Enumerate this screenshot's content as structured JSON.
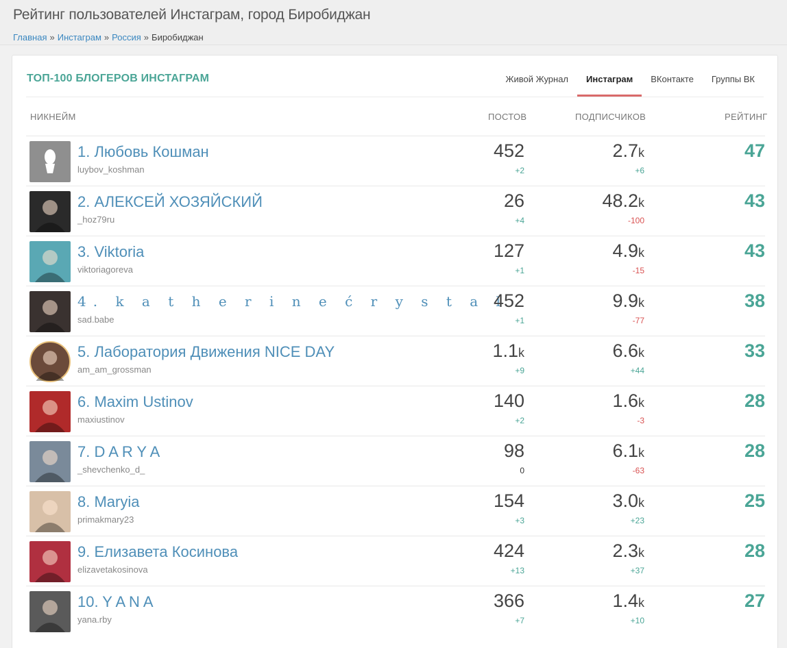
{
  "page": {
    "title": "Рейтинг пользователей Инстаграм, город Биробиджан",
    "breadcrumb": {
      "home": "Главная",
      "instagram": "Инстаграм",
      "country": "Россия",
      "separator": "»",
      "current": "Биробиджан"
    }
  },
  "card": {
    "title": "ТОП-100 БЛОГЕРОВ ИНСТАГРАМ",
    "tabs": [
      {
        "label": "Живой Журнал",
        "active": false
      },
      {
        "label": "Инстаграм",
        "active": true
      },
      {
        "label": "ВКонтакте",
        "active": false
      },
      {
        "label": "Группы ВК",
        "active": false
      }
    ],
    "columns": {
      "nickname": "НИКНЕЙМ",
      "posts": "ПОСТОВ",
      "subscribers": "ПОДПИСЧИКОВ",
      "rating": "РЕЙТИНГ"
    }
  },
  "unit_k": "k",
  "rows": [
    {
      "name": "1. Любовь Кошман",
      "handle": "luybov_koshman",
      "posts": "452",
      "posts_k": false,
      "posts_delta": "+2",
      "subs": "2.7",
      "subs_delta": "+6",
      "rating": "47"
    },
    {
      "name": "2. АЛЕКСЕЙ ХОЗЯЙСКИЙ",
      "handle": "_hoz79ru",
      "posts": "26",
      "posts_k": false,
      "posts_delta": "+4",
      "subs": "48.2",
      "subs_delta": "-100",
      "rating": "43"
    },
    {
      "name": "3. Viktoria",
      "handle": "viktoriagoreva",
      "posts": "127",
      "posts_k": false,
      "posts_delta": "+1",
      "subs": "4.9",
      "subs_delta": "-15",
      "rating": "43"
    },
    {
      "name": "4. k a t h e r i n e ć r y s t a l",
      "handle": "sad.babe",
      "posts": "452",
      "posts_k": false,
      "posts_delta": "+1",
      "subs": "9.9",
      "subs_delta": "-77",
      "rating": "38"
    },
    {
      "name": "5. Лаборатория Движения NICE DAY",
      "handle": "am_am_grossman",
      "posts": "1.1",
      "posts_k": true,
      "posts_delta": "+9",
      "subs": "6.6",
      "subs_delta": "+44",
      "rating": "33"
    },
    {
      "name": "6. Maxim Ustinov",
      "handle": "maxiustinov",
      "posts": "140",
      "posts_k": false,
      "posts_delta": "+2",
      "subs": "1.6",
      "subs_delta": "-3",
      "rating": "28"
    },
    {
      "name": "7. D A R Y A",
      "handle": "_shevchenko_d_",
      "posts": "98",
      "posts_k": false,
      "posts_delta": "0",
      "subs": "6.1",
      "subs_delta": "-63",
      "rating": "28"
    },
    {
      "name": "8. Maryia",
      "handle": "primakmary23",
      "posts": "154",
      "posts_k": false,
      "posts_delta": "+3",
      "subs": "3.0",
      "subs_delta": "+23",
      "rating": "25"
    },
    {
      "name": "9. Елизавета Косинова",
      "handle": "elizavetakosinova",
      "posts": "424",
      "posts_k": false,
      "posts_delta": "+13",
      "subs": "2.3",
      "subs_delta": "+37",
      "rating": "28"
    },
    {
      "name": "10. Y A N A",
      "handle": "yana.rby",
      "posts": "366",
      "posts_k": false,
      "posts_delta": "+7",
      "subs": "1.4",
      "subs_delta": "+10",
      "rating": "27"
    }
  ],
  "avatar_colors": [
    "#8f8f8f",
    "#2a2a2a",
    "#5aa8b4",
    "#3a3230",
    "#6b4a3a",
    "#b02a2a",
    "#7a8a9a",
    "#d8c0a8",
    "#b03040",
    "#5a5a5a"
  ],
  "colors": {
    "accent": "#4aa596",
    "link": "#4f8fb8",
    "negative": "#d95252",
    "tab_underline": "#d96a6a"
  }
}
